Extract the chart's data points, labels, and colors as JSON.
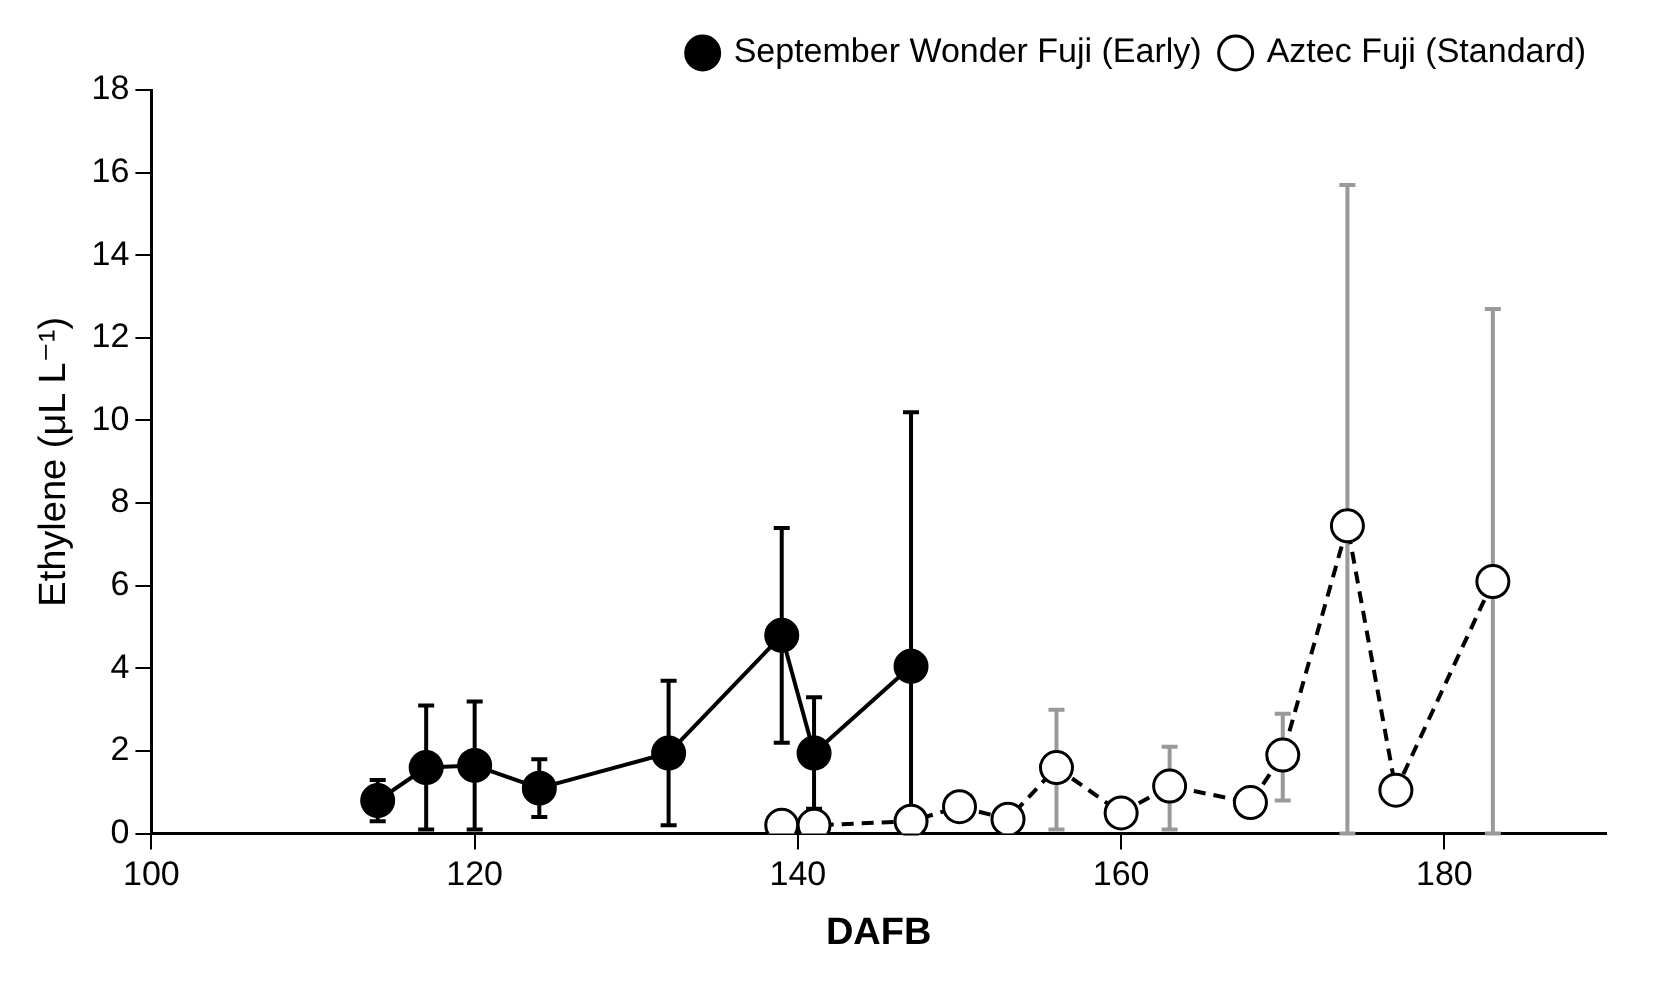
{
  "chart_data": {
    "type": "line",
    "xlabel": "DAFB",
    "ylabel": "Ethylene (μL L⁻¹)",
    "xlim": [
      100,
      190
    ],
    "xticks": [
      100,
      120,
      140,
      160,
      180
    ],
    "ylim": [
      0,
      18
    ],
    "yticks": [
      0,
      2,
      4,
      6,
      8,
      10,
      12,
      14,
      16,
      18
    ],
    "grid": false,
    "legend": "top right",
    "marker": "circle",
    "series": [
      {
        "name": "September Wonder Fuji (Early)",
        "color": "#000000",
        "line_style": "solid",
        "x": [
          114,
          117,
          120,
          124,
          132,
          139,
          141,
          147
        ],
        "values": [
          0.8,
          1.6,
          1.65,
          1.1,
          1.95,
          4.8,
          1.95,
          4.05
        ],
        "errors": [
          [
            0.3,
            1.3
          ],
          [
            0.1,
            3.1
          ],
          [
            0.1,
            3.2
          ],
          [
            0.4,
            1.8
          ],
          [
            0.2,
            3.7
          ],
          [
            2.2,
            7.4
          ],
          [
            0.6,
            3.3
          ],
          [
            0,
            10.2
          ]
        ]
      },
      {
        "name": "Aztec Fuji (Standard)",
        "color": "#ffffff",
        "line_style": "dashed",
        "x": [
          139,
          141,
          147,
          150,
          153,
          156,
          160,
          163,
          168,
          170,
          174,
          177,
          183
        ],
        "values": [
          0.2,
          0.2,
          0.3,
          0.65,
          0.35,
          1.6,
          0.5,
          1.15,
          0.75,
          1.9,
          7.45,
          1.05,
          6.1
        ],
        "errors": [
          null,
          null,
          null,
          null,
          null,
          [
            0.1,
            3.0
          ],
          null,
          [
            0.1,
            2.1
          ],
          null,
          [
            0.8,
            2.9
          ],
          [
            0,
            15.7
          ],
          null,
          [
            0,
            12.7
          ]
        ]
      }
    ]
  }
}
